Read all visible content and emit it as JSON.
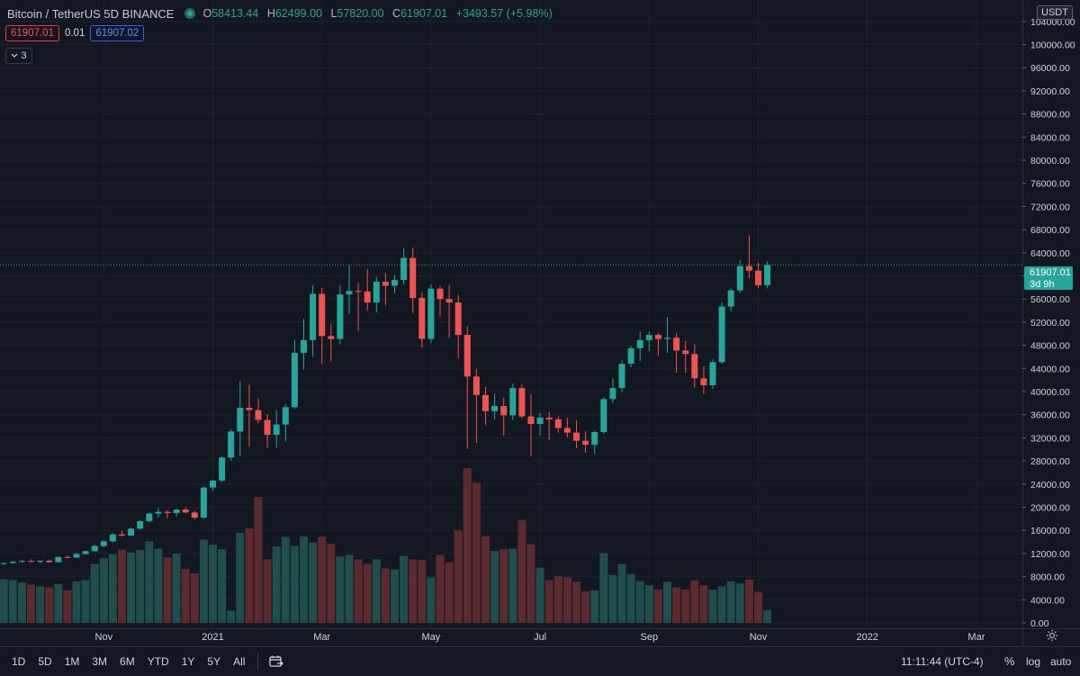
{
  "header": {
    "title": "Bitcoin / TetherUS  5D  BINANCE",
    "ohlc": [
      {
        "key": "O",
        "value": "58413.44"
      },
      {
        "key": "H",
        "value": "62499.00"
      },
      {
        "key": "L",
        "value": "57820.00"
      },
      {
        "key": "C",
        "value": "61907.01"
      }
    ],
    "change": "+3493.57 (+5.98%)",
    "sell_price": "61907.01",
    "spread": "0.01",
    "buy_price": "61907.02",
    "collapse_count": "3"
  },
  "axis": {
    "currency": "USDT",
    "last_price": "61907.01",
    "countdown": "3d 9h"
  },
  "bottom": {
    "ranges": [
      "1D",
      "5D",
      "1M",
      "3M",
      "6M",
      "YTD",
      "1Y",
      "5Y",
      "All"
    ],
    "clock": "11:11:44 (UTC-4)",
    "percent": "%",
    "log": "log",
    "auto": "auto"
  },
  "colors": {
    "up": "#26a69a",
    "down": "#ef5350",
    "vol_up": "#1f4e4d",
    "vol_down": "#5c2b30",
    "grid": "#1e222d",
    "background": "#131722"
  },
  "chart_data": {
    "type": "candlestick",
    "title": "Bitcoin / TetherUS 5D BINANCE",
    "interval": "5D",
    "yrange": [
      0,
      106000
    ],
    "ytick_labels": [
      "0.00",
      "4000.00",
      "8000.00",
      "12000.00",
      "16000.00",
      "20000.00",
      "24000.00",
      "28000.00",
      "32000.00",
      "36000.00",
      "40000.00",
      "44000.00",
      "48000.00",
      "52000.00",
      "56000.00",
      "60000.00",
      "64000.00",
      "68000.00",
      "72000.00",
      "76000.00",
      "80000.00",
      "84000.00",
      "88000.00",
      "92000.00",
      "96000.00",
      "100000.00",
      "104000.00"
    ],
    "xtick_labels": [
      {
        "label": "Nov",
        "index": 11
      },
      {
        "label": "2021",
        "index": 23
      },
      {
        "label": "Mar",
        "index": 35
      },
      {
        "label": "May",
        "index": 47
      },
      {
        "label": "Jul",
        "index": 59
      },
      {
        "label": "Sep",
        "index": 71
      },
      {
        "label": "Nov",
        "index": 83
      },
      {
        "label": "2022",
        "index": 95
      },
      {
        "label": "Mar",
        "index": 107
      }
    ],
    "last_price": 61907.01,
    "candles": [
      {
        "o": 10200,
        "h": 10450,
        "l": 10000,
        "c": 10350,
        "v": 7800
      },
      {
        "o": 10350,
        "h": 10700,
        "l": 10200,
        "c": 10600,
        "v": 7600
      },
      {
        "o": 10600,
        "h": 10900,
        "l": 10400,
        "c": 10700,
        "v": 7200
      },
      {
        "o": 10700,
        "h": 11000,
        "l": 10500,
        "c": 10550,
        "v": 6800
      },
      {
        "o": 10550,
        "h": 10800,
        "l": 10300,
        "c": 10750,
        "v": 6500
      },
      {
        "o": 10750,
        "h": 10950,
        "l": 10400,
        "c": 10500,
        "v": 6300
      },
      {
        "o": 10500,
        "h": 11500,
        "l": 10400,
        "c": 11400,
        "v": 6900
      },
      {
        "o": 11400,
        "h": 11700,
        "l": 11100,
        "c": 11300,
        "v": 5800
      },
      {
        "o": 11300,
        "h": 12100,
        "l": 11200,
        "c": 11900,
        "v": 7400
      },
      {
        "o": 11900,
        "h": 12500,
        "l": 11800,
        "c": 12400,
        "v": 7600
      },
      {
        "o": 12400,
        "h": 13500,
        "l": 12300,
        "c": 13300,
        "v": 10500
      },
      {
        "o": 13300,
        "h": 14300,
        "l": 13100,
        "c": 14100,
        "v": 11500
      },
      {
        "o": 14100,
        "h": 15500,
        "l": 13900,
        "c": 15300,
        "v": 12200
      },
      {
        "o": 15300,
        "h": 15900,
        "l": 14900,
        "c": 15100,
        "v": 13000
      },
      {
        "o": 15100,
        "h": 16500,
        "l": 15000,
        "c": 16300,
        "v": 12500
      },
      {
        "o": 16300,
        "h": 17800,
        "l": 16100,
        "c": 17600,
        "v": 13000
      },
      {
        "o": 17600,
        "h": 19100,
        "l": 17300,
        "c": 18900,
        "v": 14500
      },
      {
        "o": 18900,
        "h": 19800,
        "l": 18200,
        "c": 19200,
        "v": 13200
      },
      {
        "o": 19200,
        "h": 19500,
        "l": 18100,
        "c": 19000,
        "v": 11600
      },
      {
        "o": 19000,
        "h": 19700,
        "l": 18400,
        "c": 19600,
        "v": 12300
      },
      {
        "o": 19600,
        "h": 20000,
        "l": 18900,
        "c": 19100,
        "v": 9600
      },
      {
        "o": 19100,
        "h": 19400,
        "l": 17900,
        "c": 18200,
        "v": 8800
      },
      {
        "o": 18200,
        "h": 23600,
        "l": 18000,
        "c": 23400,
        "v": 14800
      },
      {
        "o": 23400,
        "h": 24800,
        "l": 22800,
        "c": 24600,
        "v": 13900
      },
      {
        "o": 24600,
        "h": 28800,
        "l": 24300,
        "c": 28600,
        "v": 13100
      },
      {
        "o": 28600,
        "h": 33500,
        "l": 28000,
        "c": 33100,
        "v": 2200
      },
      {
        "o": 33100,
        "h": 41800,
        "l": 28800,
        "c": 37200,
        "v": 16000
      },
      {
        "o": 37200,
        "h": 41200,
        "l": 30500,
        "c": 36800,
        "v": 16800
      },
      {
        "o": 36800,
        "h": 38800,
        "l": 34500,
        "c": 35100,
        "v": 22400
      },
      {
        "o": 35100,
        "h": 36100,
        "l": 30300,
        "c": 32500,
        "v": 11300
      },
      {
        "o": 32500,
        "h": 36800,
        "l": 30300,
        "c": 34300,
        "v": 13600
      },
      {
        "o": 34300,
        "h": 37900,
        "l": 31400,
        "c": 37300,
        "v": 15300
      },
      {
        "o": 37300,
        "h": 48900,
        "l": 37000,
        "c": 46700,
        "v": 13700
      },
      {
        "o": 46700,
        "h": 52600,
        "l": 43800,
        "c": 48900,
        "v": 15400
      },
      {
        "o": 48900,
        "h": 58400,
        "l": 46000,
        "c": 56900,
        "v": 14300
      },
      {
        "o": 56900,
        "h": 57900,
        "l": 44800,
        "c": 49600,
        "v": 15300
      },
      {
        "o": 49600,
        "h": 51700,
        "l": 45200,
        "c": 49100,
        "v": 14100
      },
      {
        "o": 49100,
        "h": 58400,
        "l": 48200,
        "c": 56800,
        "v": 11800
      },
      {
        "o": 56800,
        "h": 61800,
        "l": 53400,
        "c": 57400,
        "v": 12100
      },
      {
        "o": 57400,
        "h": 58900,
        "l": 50500,
        "c": 57300,
        "v": 11300
      },
      {
        "o": 57300,
        "h": 61200,
        "l": 54000,
        "c": 55400,
        "v": 10500
      },
      {
        "o": 55400,
        "h": 59800,
        "l": 53700,
        "c": 59000,
        "v": 11300
      },
      {
        "o": 59000,
        "h": 60500,
        "l": 54900,
        "c": 58300,
        "v": 9700
      },
      {
        "o": 58300,
        "h": 60100,
        "l": 57000,
        "c": 59300,
        "v": 9500
      },
      {
        "o": 59300,
        "h": 64800,
        "l": 58500,
        "c": 63100,
        "v": 11900
      },
      {
        "o": 63100,
        "h": 64900,
        "l": 53600,
        "c": 56200,
        "v": 11300
      },
      {
        "o": 56200,
        "h": 57100,
        "l": 47600,
        "c": 49100,
        "v": 11200
      },
      {
        "o": 49100,
        "h": 58500,
        "l": 48400,
        "c": 57800,
        "v": 8100
      },
      {
        "o": 57800,
        "h": 58300,
        "l": 53000,
        "c": 56000,
        "v": 12100
      },
      {
        "o": 56000,
        "h": 58400,
        "l": 49300,
        "c": 55400,
        "v": 10800
      },
      {
        "o": 55400,
        "h": 56700,
        "l": 45800,
        "c": 49800,
        "v": 16400
      },
      {
        "o": 49800,
        "h": 51300,
        "l": 30100,
        "c": 42600,
        "v": 27500
      },
      {
        "o": 42600,
        "h": 43900,
        "l": 31100,
        "c": 39400,
        "v": 24900
      },
      {
        "o": 39400,
        "h": 40800,
        "l": 34200,
        "c": 36600,
        "v": 15400
      },
      {
        "o": 36600,
        "h": 39600,
        "l": 35200,
        "c": 37500,
        "v": 12800
      },
      {
        "o": 37500,
        "h": 38900,
        "l": 32400,
        "c": 35900,
        "v": 13100
      },
      {
        "o": 35900,
        "h": 41400,
        "l": 35100,
        "c": 40600,
        "v": 13200
      },
      {
        "o": 40600,
        "h": 41200,
        "l": 35400,
        "c": 35700,
        "v": 18300
      },
      {
        "o": 35700,
        "h": 39500,
        "l": 28800,
        "c": 34400,
        "v": 14000
      },
      {
        "o": 34400,
        "h": 36300,
        "l": 32400,
        "c": 35500,
        "v": 9800
      },
      {
        "o": 35500,
        "h": 36500,
        "l": 31600,
        "c": 35200,
        "v": 7600
      },
      {
        "o": 35200,
        "h": 35700,
        "l": 32900,
        "c": 33700,
        "v": 8300
      },
      {
        "o": 33700,
        "h": 35400,
        "l": 32100,
        "c": 32900,
        "v": 8100
      },
      {
        "o": 32900,
        "h": 35000,
        "l": 30200,
        "c": 31500,
        "v": 7300
      },
      {
        "o": 31500,
        "h": 33100,
        "l": 29400,
        "c": 30800,
        "v": 5600
      },
      {
        "o": 30800,
        "h": 33300,
        "l": 29200,
        "c": 33000,
        "v": 5800
      },
      {
        "o": 33000,
        "h": 39100,
        "l": 32700,
        "c": 38700,
        "v": 12400
      },
      {
        "o": 38700,
        "h": 42300,
        "l": 38000,
        "c": 40600,
        "v": 8500
      },
      {
        "o": 40600,
        "h": 45400,
        "l": 39900,
        "c": 44800,
        "v": 10500
      },
      {
        "o": 44800,
        "h": 47900,
        "l": 44200,
        "c": 47500,
        "v": 8700
      },
      {
        "o": 47500,
        "h": 50400,
        "l": 45300,
        "c": 48900,
        "v": 7400
      },
      {
        "o": 48900,
        "h": 50400,
        "l": 47000,
        "c": 49800,
        "v": 6700
      },
      {
        "o": 49800,
        "h": 50200,
        "l": 46200,
        "c": 49100,
        "v": 5900
      },
      {
        "o": 49100,
        "h": 52900,
        "l": 46700,
        "c": 49300,
        "v": 7300
      },
      {
        "o": 49300,
        "h": 50100,
        "l": 43300,
        "c": 47100,
        "v": 6300
      },
      {
        "o": 47100,
        "h": 48800,
        "l": 43300,
        "c": 46500,
        "v": 5900
      },
      {
        "o": 46500,
        "h": 48200,
        "l": 40700,
        "c": 42300,
        "v": 7500
      },
      {
        "o": 42300,
        "h": 44400,
        "l": 39600,
        "c": 41100,
        "v": 6700
      },
      {
        "o": 41100,
        "h": 45600,
        "l": 40500,
        "c": 45100,
        "v": 5900
      },
      {
        "o": 45100,
        "h": 55400,
        "l": 44800,
        "c": 54700,
        "v": 6500
      },
      {
        "o": 54700,
        "h": 57800,
        "l": 53900,
        "c": 57500,
        "v": 7400
      },
      {
        "o": 57500,
        "h": 62800,
        "l": 57000,
        "c": 61700,
        "v": 7000
      },
      {
        "o": 61700,
        "h": 67000,
        "l": 59600,
        "c": 60900,
        "v": 7700
      },
      {
        "o": 60900,
        "h": 62300,
        "l": 57900,
        "c": 58400,
        "v": 5500
      },
      {
        "o": 58413.44,
        "h": 62499.0,
        "l": 57820.0,
        "c": 61907.01,
        "v": 2300
      }
    ]
  }
}
